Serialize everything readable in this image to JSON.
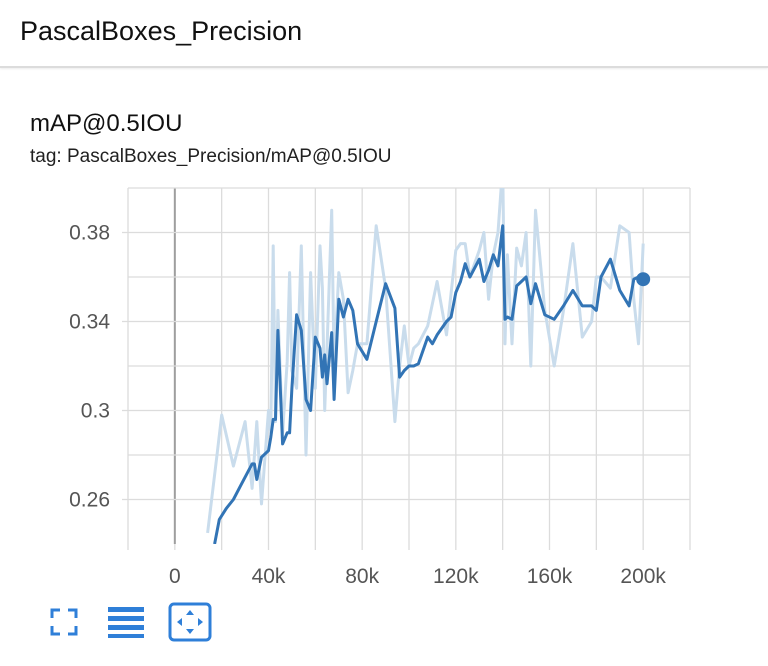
{
  "header": {
    "title": "PascalBoxes_Precision"
  },
  "card": {
    "title": "mAP@0.5IOU",
    "tag": "tag: PascalBoxes_Precision/mAP@0.5IOU"
  },
  "colors": {
    "smoothed_line": "#3274b5",
    "raw_line": "#c9dcec",
    "grid": "#dcdcdc",
    "zero_axis": "#9e9e9e",
    "icon": "#2f7fd8"
  },
  "toolbar": {
    "icons": [
      "fullscreen-icon",
      "toggle-log-scale-icon",
      "fit-domain-icon"
    ]
  },
  "chart_data": {
    "type": "line",
    "xlabel": "",
    "ylabel": "",
    "xlim": [
      -20000,
      220000
    ],
    "ylim": [
      0.24,
      0.4
    ],
    "x_ticks": [
      0,
      40000,
      80000,
      120000,
      160000,
      200000
    ],
    "x_tick_labels": [
      "0",
      "40k",
      "80k",
      "120k",
      "160k",
      "200k"
    ],
    "y_ticks": [
      0.26,
      0.3,
      0.34,
      0.38
    ],
    "y_tick_labels": [
      "0.26",
      "0.3",
      "0.34",
      "0.38"
    ],
    "grid": true,
    "series": [
      {
        "style": "raw",
        "x": [
          14000,
          18000,
          20000,
          25000,
          30000,
          33000,
          35000,
          37000,
          40000,
          41000,
          42000,
          43000,
          44000,
          46000,
          48000,
          49000,
          50000,
          52000,
          54000,
          56000,
          58000,
          60000,
          62000,
          63000,
          64000,
          65000,
          67000,
          68000,
          70000,
          72000,
          74000,
          76000,
          78000,
          82000,
          86000,
          90000,
          94000,
          96000,
          98000,
          100000,
          102000,
          104000,
          108000,
          112000,
          116000,
          120000,
          122000,
          124000,
          126000,
          130000,
          132000,
          134000,
          136000,
          138000,
          140000,
          141000,
          142000,
          144000,
          146000,
          148000,
          150000,
          152000,
          154000,
          158000,
          162000,
          166000,
          170000,
          174000,
          178000,
          180000,
          182000,
          186000,
          190000,
          194000,
          196000,
          198000,
          200000
        ],
        "y": [
          0.245,
          0.28,
          0.298,
          0.275,
          0.295,
          0.265,
          0.295,
          0.258,
          0.3,
          0.29,
          0.374,
          0.295,
          0.345,
          0.29,
          0.322,
          0.362,
          0.318,
          0.31,
          0.374,
          0.28,
          0.362,
          0.31,
          0.374,
          0.355,
          0.3,
          0.328,
          0.39,
          0.32,
          0.362,
          0.35,
          0.308,
          0.318,
          0.33,
          0.33,
          0.383,
          0.355,
          0.295,
          0.32,
          0.338,
          0.32,
          0.328,
          0.33,
          0.338,
          0.358,
          0.334,
          0.372,
          0.375,
          0.375,
          0.36,
          0.372,
          0.38,
          0.35,
          0.37,
          0.38,
          0.41,
          0.33,
          0.37,
          0.33,
          0.373,
          0.365,
          0.38,
          0.32,
          0.39,
          0.345,
          0.32,
          0.345,
          0.375,
          0.333,
          0.34,
          0.36,
          0.36,
          0.355,
          0.383,
          0.38,
          0.35,
          0.33,
          0.375
        ]
      },
      {
        "style": "smoothed",
        "x": [
          17000,
          19000,
          22000,
          25000,
          28000,
          31000,
          33000,
          34000,
          35000,
          37000,
          40000,
          41000,
          42000,
          43000,
          44000,
          46000,
          48000,
          49000,
          50000,
          52000,
          54000,
          56000,
          58000,
          60000,
          62000,
          63000,
          64000,
          65000,
          67000,
          68000,
          70000,
          72000,
          74000,
          76000,
          78000,
          82000,
          86000,
          90000,
          94000,
          96000,
          98000,
          100000,
          102000,
          104000,
          108000,
          110000,
          112000,
          116000,
          118000,
          120000,
          122000,
          124000,
          126000,
          130000,
          132000,
          134000,
          136000,
          138000,
          140000,
          141000,
          142000,
          144000,
          146000,
          148000,
          150000,
          152000,
          154000,
          158000,
          162000,
          166000,
          170000,
          174000,
          178000,
          180000,
          182000,
          186000,
          190000,
          194000,
          196000,
          198000,
          200000
        ],
        "y": [
          0.24,
          0.251,
          0.256,
          0.26,
          0.266,
          0.272,
          0.276,
          0.276,
          0.269,
          0.279,
          0.282,
          0.288,
          0.296,
          0.296,
          0.336,
          0.285,
          0.29,
          0.29,
          0.31,
          0.343,
          0.336,
          0.305,
          0.3,
          0.333,
          0.328,
          0.315,
          0.325,
          0.312,
          0.335,
          0.305,
          0.35,
          0.342,
          0.35,
          0.345,
          0.33,
          0.323,
          0.34,
          0.357,
          0.346,
          0.315,
          0.318,
          0.32,
          0.32,
          0.321,
          0.333,
          0.33,
          0.334,
          0.34,
          0.342,
          0.353,
          0.358,
          0.366,
          0.36,
          0.368,
          0.358,
          0.363,
          0.37,
          0.365,
          0.383,
          0.341,
          0.342,
          0.341,
          0.356,
          0.358,
          0.36,
          0.348,
          0.357,
          0.343,
          0.341,
          0.347,
          0.354,
          0.347,
          0.347,
          0.345,
          0.36,
          0.368,
          0.354,
          0.347,
          0.359,
          0.36,
          0.359
        ]
      }
    ]
  }
}
